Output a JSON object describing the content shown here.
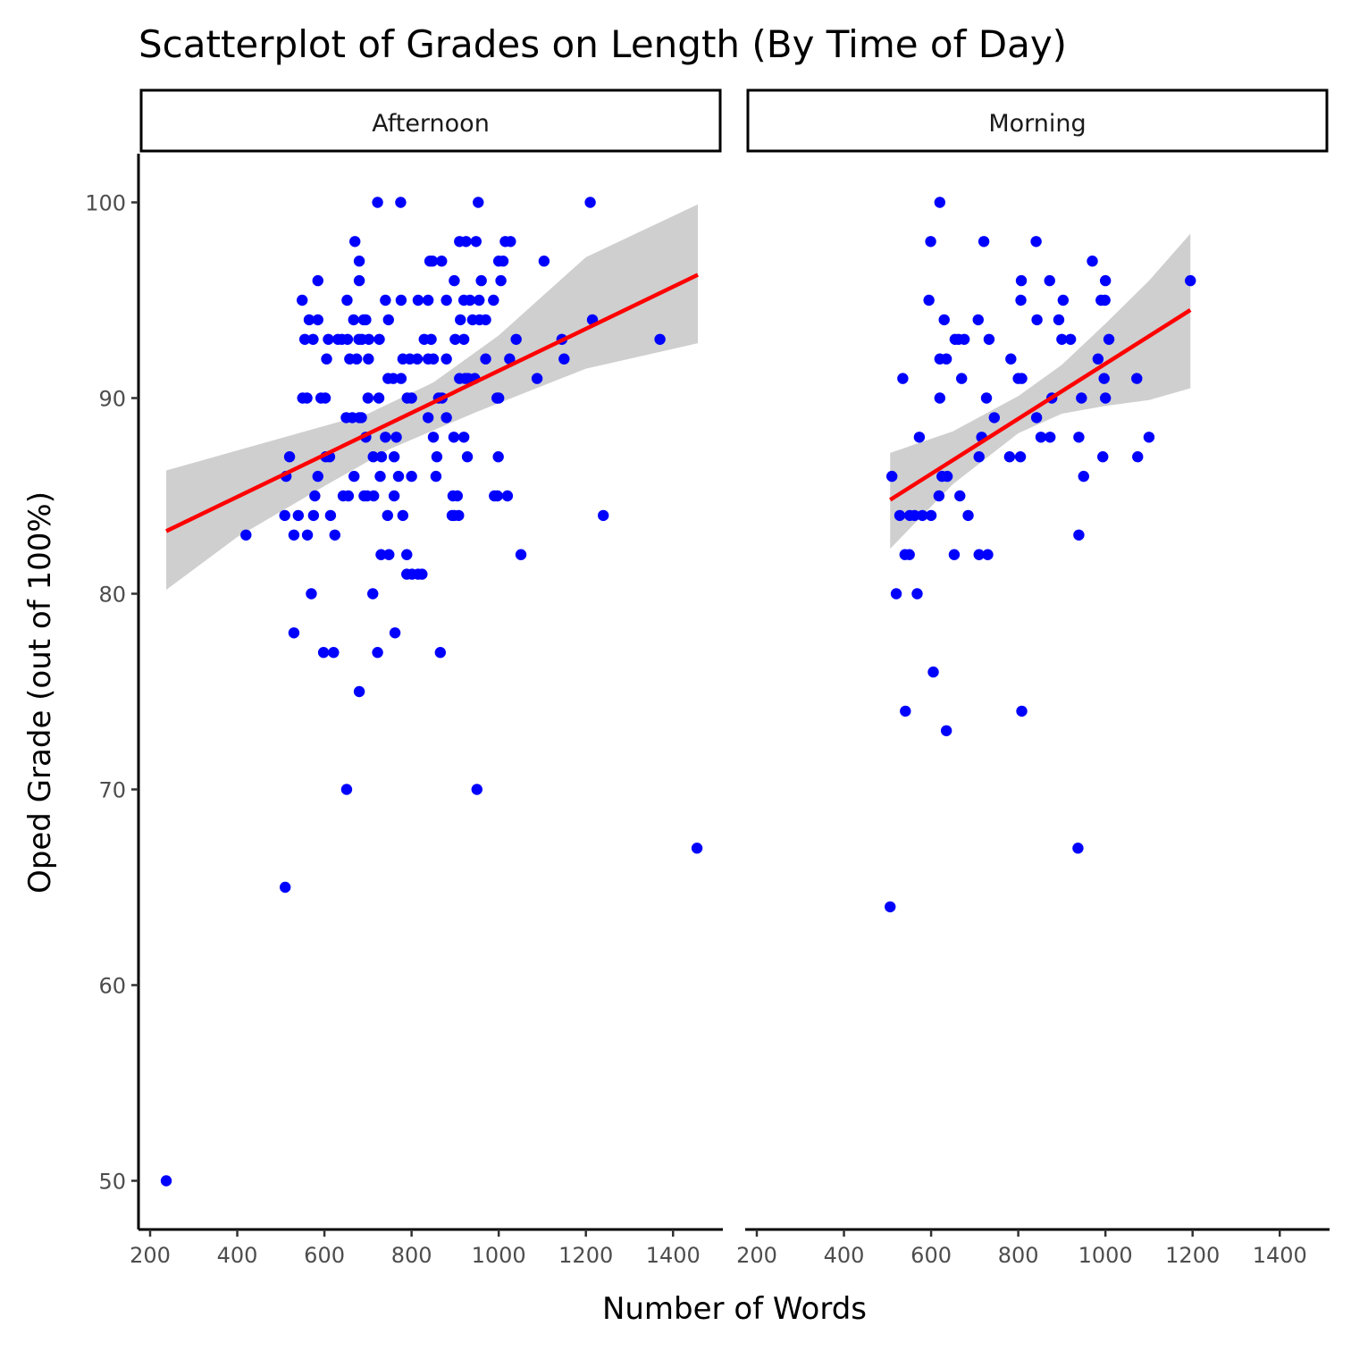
{
  "chart_data": {
    "type": "scatter",
    "title": "Scatterplot of Grades on Length (By Time of Day)",
    "xlabel": "Number of Words",
    "ylabel": "Oped Grade (out of 100%)",
    "xlim": [
      200,
      1460
    ],
    "ylim": [
      47.5,
      102.5
    ],
    "x_ticks": [
      200,
      400,
      600,
      800,
      1000,
      1200,
      1400
    ],
    "y_ticks": [
      50,
      60,
      70,
      80,
      90,
      100
    ],
    "point_color": "#0000ff",
    "fit_color": "#ff0000",
    "band_color": "#cccccc",
    "panels": [
      {
        "label": "Afternoon",
        "fit": {
          "x": [
            237,
            1457
          ],
          "y": [
            83.2,
            96.3
          ]
        },
        "band": {
          "upper": [
            [
              237,
              86.3
            ],
            [
              700,
              89.2
            ],
            [
              850,
              90.8
            ],
            [
              1000,
              93.2
            ],
            [
              1200,
              97.2
            ],
            [
              1457,
              99.9
            ]
          ],
          "lower": [
            [
              237,
              80.2
            ],
            [
              400,
              82.9
            ],
            [
              600,
              85.5
            ],
            [
              750,
              87.4
            ],
            [
              950,
              89.3
            ],
            [
              1200,
              91.5
            ],
            [
              1457,
              92.8
            ]
          ]
        },
        "points": [
          [
            237,
            50
          ],
          [
            510,
            65
          ],
          [
            651,
            70
          ],
          [
            950,
            70
          ],
          [
            1455,
            67
          ],
          [
            530,
            78
          ],
          [
            598,
            77
          ],
          [
            621,
            77
          ],
          [
            680,
            75
          ],
          [
            722,
            77
          ],
          [
            762,
            78
          ],
          [
            866,
            77
          ],
          [
            570,
            80
          ],
          [
            711,
            80
          ],
          [
            420,
            83
          ],
          [
            530,
            83
          ],
          [
            561,
            83
          ],
          [
            624,
            83
          ],
          [
            509,
            84
          ],
          [
            540,
            84
          ],
          [
            575,
            84
          ],
          [
            614,
            84
          ],
          [
            745,
            84
          ],
          [
            780,
            84
          ],
          [
            893,
            84
          ],
          [
            898,
            84
          ],
          [
            908,
            84
          ],
          [
            1240,
            84
          ],
          [
            1051,
            82
          ],
          [
            730,
            82
          ],
          [
            748,
            82
          ],
          [
            789,
            82
          ],
          [
            789,
            81
          ],
          [
            801,
            81
          ],
          [
            815,
            81
          ],
          [
            824,
            81
          ],
          [
            512,
            86
          ],
          [
            520,
            87
          ],
          [
            585,
            86
          ],
          [
            603,
            87
          ],
          [
            612,
            87
          ],
          [
            578,
            85
          ],
          [
            643,
            85
          ],
          [
            655,
            85
          ],
          [
            668,
            86
          ],
          [
            691,
            85
          ],
          [
            698,
            85
          ],
          [
            713,
            85
          ],
          [
            728,
            86
          ],
          [
            760,
            85
          ],
          [
            770,
            86
          ],
          [
            800,
            86
          ],
          [
            856,
            86
          ],
          [
            895,
            85
          ],
          [
            905,
            85
          ],
          [
            990,
            85
          ],
          [
            997,
            85
          ],
          [
            1020,
            85
          ],
          [
            550,
            90
          ],
          [
            560,
            90
          ],
          [
            592,
            90
          ],
          [
            602,
            90
          ],
          [
            680,
            89
          ],
          [
            700,
            90
          ],
          [
            725,
            90
          ],
          [
            650,
            89
          ],
          [
            664,
            89
          ],
          [
            685,
            89
          ],
          [
            695,
            88
          ],
          [
            712,
            87
          ],
          [
            731,
            87
          ],
          [
            760,
            87
          ],
          [
            740,
            88
          ],
          [
            765,
            88
          ],
          [
            790,
            90
          ],
          [
            800,
            90
          ],
          [
            838,
            89
          ],
          [
            858,
            87
          ],
          [
            850,
            88
          ],
          [
            880,
            89
          ],
          [
            870,
            90
          ],
          [
            897,
            88
          ],
          [
            920,
            88
          ],
          [
            928,
            87
          ],
          [
            910,
            91
          ],
          [
            923,
            91
          ],
          [
            996,
            90
          ],
          [
            999,
            87
          ],
          [
            555,
            93
          ],
          [
            565,
            94
          ],
          [
            574,
            93
          ],
          [
            585,
            94
          ],
          [
            609,
            93
          ],
          [
            605,
            92
          ],
          [
            631,
            93
          ],
          [
            640,
            93
          ],
          [
            652,
            95
          ],
          [
            653,
            93
          ],
          [
            658,
            92
          ],
          [
            667,
            94
          ],
          [
            679,
            93
          ],
          [
            674,
            92
          ],
          [
            686,
            93
          ],
          [
            690,
            94
          ],
          [
            702,
            93
          ],
          [
            701,
            92
          ],
          [
            726,
            93
          ],
          [
            747,
            94
          ],
          [
            746,
            91
          ],
          [
            758,
            91
          ],
          [
            776,
            91
          ],
          [
            780,
            92
          ],
          [
            796,
            92
          ],
          [
            813,
            92
          ],
          [
            829,
            93
          ],
          [
            838,
            92
          ],
          [
            845,
            93
          ],
          [
            850,
            92
          ],
          [
            862,
            90
          ],
          [
            880,
            92
          ],
          [
            900,
            93
          ],
          [
            912,
            94
          ],
          [
            920,
            93
          ],
          [
            930,
            91
          ],
          [
            945,
            91
          ],
          [
            940,
            94
          ],
          [
            956,
            94
          ],
          [
            970,
            94
          ],
          [
            970,
            92
          ],
          [
            1000,
            90
          ],
          [
            1025,
            92
          ],
          [
            1040,
            93
          ],
          [
            1088,
            91
          ],
          [
            1145,
            93
          ],
          [
            1150,
            92
          ],
          [
            1215,
            94
          ],
          [
            1370,
            93
          ],
          [
            549,
            95
          ],
          [
            585,
            96
          ],
          [
            680,
            96
          ],
          [
            695,
            94
          ],
          [
            740,
            95
          ],
          [
            776,
            95
          ],
          [
            815,
            95
          ],
          [
            838,
            95
          ],
          [
            880,
            95
          ],
          [
            898,
            96
          ],
          [
            920,
            95
          ],
          [
            934,
            95
          ],
          [
            955,
            95
          ],
          [
            988,
            95
          ],
          [
            1005,
            96
          ],
          [
            680,
            97
          ],
          [
            842,
            97
          ],
          [
            848,
            97
          ],
          [
            869,
            97
          ],
          [
            910,
            98
          ],
          [
            925,
            98
          ],
          [
            948,
            98
          ],
          [
            1000,
            97
          ],
          [
            1010,
            97
          ],
          [
            1015,
            98
          ],
          [
            1027,
            98
          ],
          [
            1104,
            97
          ],
          [
            670,
            98
          ],
          [
            722,
            100
          ],
          [
            775,
            100
          ],
          [
            953,
            100
          ],
          [
            1210,
            100
          ],
          [
            960,
            96
          ]
        ]
      },
      {
        "label": "Morning",
        "fit": {
          "x": [
            506,
            1195
          ],
          "y": [
            84.8,
            94.5
          ]
        },
        "band": {
          "upper": [
            [
              506,
              87.2
            ],
            [
              650,
              88.3
            ],
            [
              800,
              90.1
            ],
            [
              900,
              91.7
            ],
            [
              1000,
              93.8
            ],
            [
              1100,
              96.0
            ],
            [
              1195,
              98.4
            ]
          ],
          "lower": [
            [
              506,
              82.3
            ],
            [
              650,
              85.6
            ],
            [
              800,
              88.2
            ],
            [
              900,
              89.2
            ],
            [
              1000,
              89.6
            ],
            [
              1100,
              89.9
            ],
            [
              1195,
              90.5
            ]
          ]
        },
        "points": [
          [
            506,
            64
          ],
          [
            520,
            80
          ],
          [
            568,
            80
          ],
          [
            541,
            74
          ],
          [
            605,
            76
          ],
          [
            635,
            73
          ],
          [
            808,
            74
          ],
          [
            937,
            67
          ],
          [
            510,
            86
          ],
          [
            535,
            91
          ],
          [
            528,
            84
          ],
          [
            540,
            82
          ],
          [
            550,
            82
          ],
          [
            551,
            84
          ],
          [
            562,
            84
          ],
          [
            580,
            84
          ],
          [
            573,
            88
          ],
          [
            595,
            95
          ],
          [
            599,
            98
          ],
          [
            620,
            100
          ],
          [
            630,
            94
          ],
          [
            620,
            92
          ],
          [
            635,
            92
          ],
          [
            620,
            90
          ],
          [
            618,
            85
          ],
          [
            625,
            86
          ],
          [
            637,
            86
          ],
          [
            600,
            84
          ],
          [
            653,
            82
          ],
          [
            655,
            93
          ],
          [
            663,
            93
          ],
          [
            670,
            91
          ],
          [
            666,
            85
          ],
          [
            676,
            93
          ],
          [
            685,
            84
          ],
          [
            708,
            94
          ],
          [
            710,
            87
          ],
          [
            710,
            82
          ],
          [
            716,
            88
          ],
          [
            730,
            82
          ],
          [
            733,
            93
          ],
          [
            727,
            90
          ],
          [
            721,
            98
          ],
          [
            745,
            89
          ],
          [
            783,
            92
          ],
          [
            780,
            87
          ],
          [
            800,
            91
          ],
          [
            805,
            87
          ],
          [
            806,
            95
          ],
          [
            807,
            96
          ],
          [
            808,
            91
          ],
          [
            843,
            94
          ],
          [
            841,
            98
          ],
          [
            842,
            89
          ],
          [
            852,
            88
          ],
          [
            873,
            88
          ],
          [
            877,
            90
          ],
          [
            872,
            96
          ],
          [
            893,
            94
          ],
          [
            900,
            93
          ],
          [
            903,
            95
          ],
          [
            920,
            93
          ],
          [
            939,
            88
          ],
          [
            945,
            90
          ],
          [
            939,
            83
          ],
          [
            950,
            86
          ],
          [
            970,
            97
          ],
          [
            983,
            92
          ],
          [
            990,
            95
          ],
          [
            999,
            95
          ],
          [
            994,
            87
          ],
          [
            997,
            91
          ],
          [
            1000,
            90
          ],
          [
            1000,
            96
          ],
          [
            1008,
            93
          ],
          [
            1072,
            91
          ],
          [
            1074,
            87
          ],
          [
            1100,
            88
          ],
          [
            1195,
            96
          ]
        ]
      }
    ]
  }
}
